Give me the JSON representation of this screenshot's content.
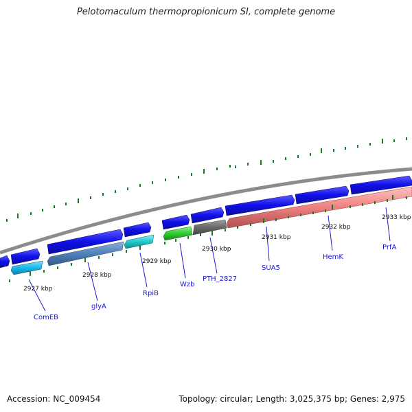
{
  "title": "Pelotomaculum thermopropionicum SI, complete genome",
  "footer": {
    "accession": "Accession: NC_009454",
    "summary": "Topology: circular; Length: 3,025,375 bp; Genes: 2,975"
  },
  "kbp_labels": [
    "2927 kbp",
    "2928 kbp",
    "2929 kbp",
    "2930 kbp",
    "2931 kbp",
    "2932 kbp",
    "2933 kbp"
  ],
  "genes": {
    "comeb": "ComEB",
    "glya": "glyA",
    "rpib": "RpiB",
    "wzb": "Wzb",
    "pth": "PTH_2827",
    "sua5": "SUA5",
    "hemk": "HemK",
    "prfa": "PrfA"
  },
  "colors": {
    "cds_forward": "#1010e8",
    "backbone": "#8c8c8c",
    "comeb": "#19b8ea",
    "glya": "#4f80b8",
    "rpib": "#22c8cc",
    "wzb": "#2ecb2e",
    "pth": "#6a6a6a",
    "sua5": "#ee8080",
    "tick": "#1a7a1a"
  }
}
